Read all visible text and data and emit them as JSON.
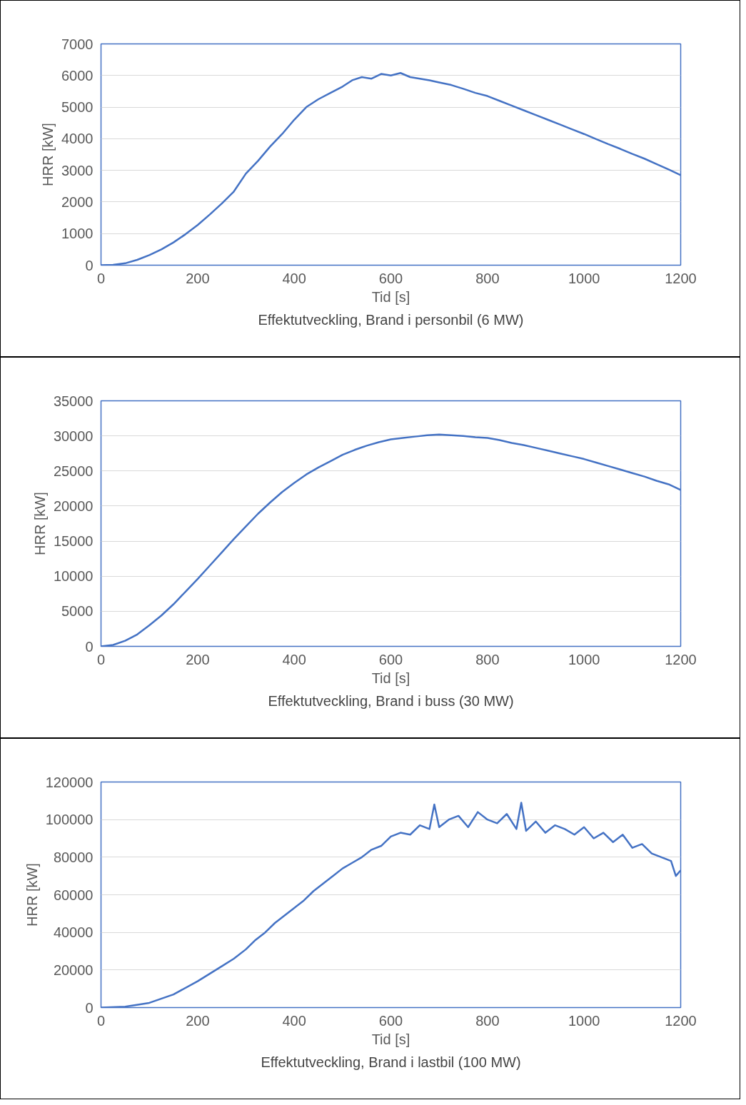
{
  "chart_data": [
    {
      "type": "line",
      "title": "Effektutveckling, Brand i personbil (6 MW)",
      "xlabel": "Tid [s]",
      "ylabel": "HRR [kW]",
      "xlim": [
        0,
        1200
      ],
      "xticks": [
        0,
        200,
        400,
        600,
        800,
        1000,
        1200
      ],
      "ylim": [
        0,
        7000
      ],
      "yticks": [
        0,
        1000,
        2000,
        3000,
        4000,
        5000,
        6000,
        7000
      ],
      "grid": "y",
      "x": [
        0,
        25,
        50,
        75,
        100,
        125,
        150,
        175,
        200,
        225,
        250,
        275,
        300,
        325,
        350,
        375,
        400,
        425,
        450,
        475,
        500,
        520,
        540,
        560,
        580,
        600,
        620,
        640,
        660,
        680,
        700,
        725,
        750,
        775,
        800,
        825,
        850,
        875,
        900,
        925,
        950,
        975,
        1000,
        1025,
        1050,
        1075,
        1100,
        1125,
        1150,
        1175,
        1200
      ],
      "series": [
        {
          "color": "#4472c4",
          "values": [
            0,
            10,
            60,
            170,
            320,
            500,
            720,
            980,
            1270,
            1600,
            1950,
            2330,
            2900,
            3300,
            3750,
            4150,
            4600,
            5000,
            5250,
            5450,
            5650,
            5850,
            5950,
            5900,
            6050,
            6000,
            6080,
            5950,
            5900,
            5850,
            5780,
            5700,
            5580,
            5450,
            5350,
            5200,
            5050,
            4900,
            4750,
            4600,
            4450,
            4300,
            4150,
            3990,
            3830,
            3680,
            3520,
            3370,
            3200,
            3030,
            2850
          ]
        }
      ]
    },
    {
      "type": "line",
      "title": "Effektutveckling, Brand i buss (30 MW)",
      "xlabel": "Tid [s]",
      "ylabel": "HRR [kW]",
      "xlim": [
        0,
        1200
      ],
      "xticks": [
        0,
        200,
        400,
        600,
        800,
        1000,
        1200
      ],
      "ylim": [
        0,
        35000
      ],
      "yticks": [
        0,
        5000,
        10000,
        15000,
        20000,
        25000,
        30000,
        35000
      ],
      "grid": "y",
      "x": [
        0,
        25,
        50,
        75,
        100,
        125,
        150,
        175,
        200,
        225,
        250,
        275,
        300,
        325,
        350,
        375,
        400,
        425,
        450,
        475,
        500,
        525,
        550,
        575,
        600,
        625,
        650,
        675,
        700,
        725,
        750,
        775,
        800,
        825,
        850,
        875,
        900,
        925,
        950,
        975,
        1000,
        1025,
        1050,
        1075,
        1100,
        1125,
        1150,
        1175,
        1200
      ],
      "series": [
        {
          "color": "#4472c4",
          "values": [
            0,
            200,
            800,
            1700,
            3000,
            4400,
            6000,
            7800,
            9600,
            11500,
            13400,
            15300,
            17100,
            18900,
            20500,
            22000,
            23300,
            24500,
            25500,
            26400,
            27300,
            28000,
            28600,
            29100,
            29500,
            29700,
            29900,
            30100,
            30200,
            30100,
            30000,
            29800,
            29700,
            29400,
            29000,
            28700,
            28300,
            27900,
            27500,
            27100,
            26700,
            26200,
            25700,
            25200,
            24700,
            24200,
            23600,
            23100,
            22300
          ]
        }
      ]
    },
    {
      "type": "line",
      "title": "Effektutveckling, Brand i lastbil (100 MW)",
      "xlabel": "Tid [s]",
      "ylabel": "HRR [kW]",
      "xlim": [
        0,
        1200
      ],
      "xticks": [
        0,
        200,
        400,
        600,
        800,
        1000,
        1200
      ],
      "ylim": [
        0,
        120000
      ],
      "yticks": [
        0,
        20000,
        40000,
        60000,
        80000,
        100000,
        120000
      ],
      "grid": "y",
      "x": [
        0,
        50,
        100,
        150,
        200,
        225,
        250,
        275,
        300,
        320,
        340,
        360,
        380,
        400,
        420,
        440,
        460,
        480,
        500,
        520,
        540,
        560,
        580,
        600,
        620,
        640,
        660,
        680,
        690,
        700,
        720,
        740,
        760,
        780,
        800,
        820,
        840,
        860,
        870,
        880,
        900,
        920,
        940,
        960,
        980,
        1000,
        1020,
        1040,
        1060,
        1080,
        1100,
        1120,
        1140,
        1160,
        1180,
        1190,
        1200
      ],
      "series": [
        {
          "color": "#4472c4",
          "values": [
            0,
            500,
            2500,
            7000,
            14000,
            18000,
            22000,
            26000,
            31000,
            36000,
            40000,
            45000,
            49000,
            53000,
            57000,
            62000,
            66000,
            70000,
            74000,
            77000,
            80000,
            84000,
            86000,
            91000,
            93000,
            92000,
            97000,
            95000,
            108000,
            96000,
            100000,
            102000,
            96000,
            104000,
            100000,
            98000,
            103000,
            95000,
            109000,
            94000,
            99000,
            93000,
            97000,
            95000,
            92000,
            96000,
            90000,
            93000,
            88000,
            92000,
            85000,
            87000,
            82000,
            80000,
            78000,
            70000,
            73000
          ]
        }
      ]
    }
  ]
}
